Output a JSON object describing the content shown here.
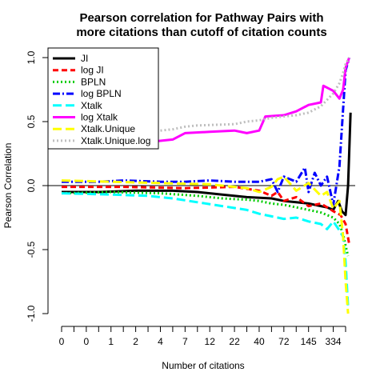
{
  "chart_data": {
    "type": "line",
    "title_lines": [
      "Pearson correlation for Pathway Pairs with",
      "more citations than cutoff of citation counts"
    ],
    "xlabel": "Number of citations",
    "ylabel": "Pearson Correlation",
    "ylim": [
      -1.0,
      1.0
    ],
    "y_ticks": [
      {
        "value": -1.0,
        "label": "-1.0"
      },
      {
        "value": -0.5,
        "label": "-0.5"
      },
      {
        "value": 0.0,
        "label": "0.0"
      },
      {
        "value": 0.5,
        "label": "0.5"
      },
      {
        "value": 1.0,
        "label": "1.0"
      }
    ],
    "x_tick_count": 24,
    "x_tick_labels": [
      {
        "index": 0,
        "label": "0"
      },
      {
        "index": 2,
        "label": "0"
      },
      {
        "index": 4,
        "label": "1"
      },
      {
        "index": 6,
        "label": "2"
      },
      {
        "index": 8,
        "label": "4"
      },
      {
        "index": 10,
        "label": "7"
      },
      {
        "index": 12,
        "label": "12"
      },
      {
        "index": 14,
        "label": "22"
      },
      {
        "index": 16,
        "label": "40"
      },
      {
        "index": 18,
        "label": "72"
      },
      {
        "index": 20,
        "label": "145"
      },
      {
        "index": 22,
        "label": "334"
      }
    ],
    "xlim": [
      0,
      23
    ],
    "reference_line": 0,
    "legend_position": "top-left",
    "series": [
      {
        "name": "JI",
        "color": "#000000",
        "dash": "solid",
        "x": [
          0,
          3,
          6,
          9,
          11,
          13,
          15,
          17,
          18,
          19,
          20,
          21,
          21.5,
          22,
          22.4,
          22.7,
          23.0,
          23.2,
          23.4
        ],
        "y": [
          -0.05,
          -0.05,
          -0.04,
          -0.04,
          -0.05,
          -0.07,
          -0.09,
          -0.1,
          -0.12,
          -0.13,
          -0.14,
          -0.16,
          -0.17,
          -0.19,
          -0.12,
          -0.2,
          -0.23,
          0.0,
          0.57
        ]
      },
      {
        "name": "log JI",
        "color": "#ff0000",
        "dash": "dashed",
        "x": [
          0,
          5,
          10,
          14,
          16,
          17,
          17.5,
          18,
          19,
          20,
          21,
          22,
          22.6,
          23.0,
          23.3
        ],
        "y": [
          -0.01,
          -0.01,
          -0.02,
          -0.01,
          -0.04,
          -0.08,
          -0.05,
          -0.12,
          -0.09,
          -0.16,
          -0.14,
          -0.2,
          -0.23,
          -0.3,
          -0.46
        ]
      },
      {
        "name": "BPLN",
        "color": "#00cc00",
        "dash": "dotted",
        "x": [
          0,
          4,
          8,
          11,
          13,
          15,
          16,
          17,
          18,
          19,
          20,
          21,
          22,
          22.5,
          22.8,
          23.0,
          23.2
        ],
        "y": [
          -0.06,
          -0.05,
          -0.06,
          -0.08,
          -0.1,
          -0.11,
          -0.12,
          -0.14,
          -0.15,
          -0.17,
          -0.19,
          -0.21,
          -0.25,
          -0.3,
          -0.38,
          -0.47,
          -0.55
        ]
      },
      {
        "name": "log BPLN",
        "color": "#0000ff",
        "dash": "dashdot",
        "x": [
          0,
          3,
          5,
          8,
          10,
          12,
          14,
          16,
          17,
          17.5,
          18,
          19,
          19.7,
          20,
          20.5,
          21,
          21.5,
          22,
          22.5,
          22.8,
          23.0,
          23.3
        ],
        "y": [
          0.03,
          0.03,
          0.04,
          0.03,
          0.03,
          0.04,
          0.03,
          0.03,
          0.05,
          -0.05,
          0.07,
          0.03,
          0.14,
          -0.05,
          0.1,
          0.0,
          0.07,
          -0.15,
          0.15,
          0.6,
          0.9,
          1.0
        ]
      },
      {
        "name": "Xtalk",
        "color": "#00ffff",
        "dash": "longdash",
        "x": [
          0,
          4,
          7,
          9,
          11,
          13,
          15,
          16,
          17,
          18,
          19,
          20,
          21,
          21.5,
          22,
          22.5,
          22.8,
          23.0,
          23.2
        ],
        "y": [
          -0.06,
          -0.07,
          -0.08,
          -0.1,
          -0.13,
          -0.16,
          -0.19,
          -0.22,
          -0.24,
          -0.26,
          -0.25,
          -0.28,
          -0.3,
          -0.34,
          -0.28,
          -0.35,
          -0.4,
          -0.6,
          -0.95
        ]
      },
      {
        "name": "log Xtalk",
        "color": "#ff00ff",
        "dash": "solid",
        "x": [
          0,
          2,
          4,
          5,
          7,
          9,
          10,
          12,
          14,
          15,
          16,
          16.5,
          18,
          19,
          20,
          21,
          21.2,
          22,
          22.5,
          22.8,
          23.0,
          23.3
        ],
        "y": [
          0.3,
          0.31,
          0.33,
          0.34,
          0.34,
          0.36,
          0.41,
          0.42,
          0.43,
          0.41,
          0.43,
          0.54,
          0.55,
          0.58,
          0.63,
          0.65,
          0.78,
          0.74,
          0.68,
          0.75,
          0.92,
          1.0
        ]
      },
      {
        "name": "Xtalk.Unique",
        "color": "#ffff00",
        "dash": "longdash",
        "x": [
          0,
          4,
          8,
          12,
          15,
          16,
          17,
          17.5,
          18,
          19,
          20,
          21,
          21.5,
          22,
          22.5,
          22.8,
          23.0,
          23.2
        ],
        "y": [
          0.04,
          0.03,
          0.02,
          0.01,
          -0.02,
          -0.05,
          -0.01,
          0.05,
          0.07,
          -0.04,
          0.02,
          -0.08,
          -0.05,
          -0.18,
          -0.12,
          -0.4,
          -0.75,
          -1.0
        ]
      },
      {
        "name": "Xtalk.Unique.log",
        "color": "#bebebe",
        "dash": "dotted",
        "x": [
          0,
          3,
          5,
          7,
          9,
          10,
          11,
          14,
          15,
          16,
          17,
          19,
          20,
          21,
          22,
          22.5,
          22.8,
          23.0,
          23.3
        ],
        "y": [
          0.32,
          0.34,
          0.38,
          0.42,
          0.44,
          0.46,
          0.47,
          0.48,
          0.5,
          0.51,
          0.53,
          0.55,
          0.57,
          0.62,
          0.72,
          0.8,
          0.88,
          0.95,
          1.0
        ]
      }
    ]
  }
}
